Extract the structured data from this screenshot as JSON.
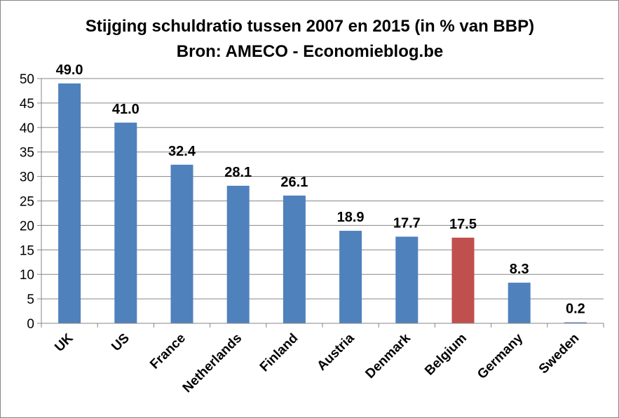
{
  "chart_data": {
    "type": "bar",
    "title": "Stijging schuldratio tussen 2007 en 2015 (in % van BBP)",
    "subtitle": "Bron: AMECO - Economieblog.be",
    "xlabel": "",
    "ylabel": "",
    "categories": [
      "UK",
      "US",
      "France",
      "Netherlands",
      "Finland",
      "Austria",
      "Denmark",
      "Belgium",
      "Germany",
      "Sweden"
    ],
    "values": [
      49.0,
      41.0,
      32.4,
      28.1,
      26.1,
      18.9,
      17.7,
      17.5,
      8.3,
      0.2
    ],
    "data_labels": [
      "49.0",
      "41.0",
      "32.4",
      "28.1",
      "26.1",
      "18.9",
      "17.7",
      "17.5",
      "8.3",
      "0.2"
    ],
    "yticks": [
      "0",
      "5",
      "10",
      "15",
      "20",
      "25",
      "30",
      "35",
      "40",
      "45",
      "50"
    ],
    "ylim": [
      0,
      50
    ],
    "grid": true,
    "legend": "none",
    "colors": {
      "default_bar": "#4F81BD",
      "highlight_bar": "#C0504D",
      "highlight_category": "Belgium",
      "gridline": "#868686",
      "axis": "#868686"
    }
  }
}
